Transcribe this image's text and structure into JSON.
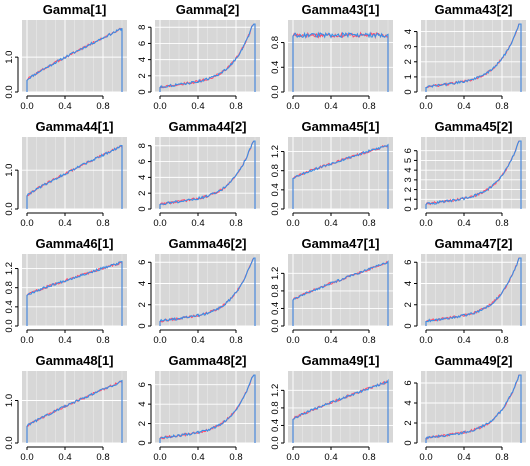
{
  "figure": {
    "background": "#ffffff",
    "panel_background": "#d7d7d7"
  },
  "colors": {
    "chain1": "#ff4d6d",
    "chain2": "#3a8ee6"
  },
  "chart_data": [
    {
      "type": "line",
      "title": "Gamma[1]",
      "x_ticks": [
        "0.0",
        "0.4",
        "0.8"
      ],
      "y_ticks": [
        "0.0",
        "1.0"
      ],
      "ylim": [
        0,
        1.95
      ],
      "shape": "rising",
      "end": 1.82,
      "start": 0.35,
      "series": [
        {
          "values": [
            [
              0,
              0
            ],
            [
              0.02,
              0.3
            ],
            [
              0.1,
              0.45
            ],
            [
              0.3,
              0.8
            ],
            [
              0.5,
              1.1
            ],
            [
              0.7,
              1.45
            ],
            [
              0.9,
              1.75
            ],
            [
              0.97,
              1.82
            ],
            [
              1.0,
              0
            ]
          ]
        }
      ]
    },
    {
      "type": "line",
      "title": "Gamma[2]",
      "x_ticks": [
        "0.0",
        "0.4",
        "0.8"
      ],
      "y_ticks": [
        "0",
        "2",
        "4",
        "6",
        "8"
      ],
      "ylim": [
        0,
        8.4
      ],
      "shape": "convex",
      "series": [
        {
          "values": [
            [
              0,
              0
            ],
            [
              0.2,
              0.3
            ],
            [
              0.4,
              0.8
            ],
            [
              0.6,
              1.5
            ],
            [
              0.8,
              3.0
            ],
            [
              0.9,
              4.6
            ],
            [
              0.96,
              6.5
            ],
            [
              0.985,
              7.8
            ],
            [
              1.0,
              0
            ]
          ]
        }
      ]
    },
    {
      "type": "line",
      "title": "Gamma43[1]",
      "x_ticks": [
        "0.0",
        "0.4",
        "0.8"
      ],
      "y_ticks": [
        "0.0",
        "0.4",
        "0.8"
      ],
      "ylim": [
        0,
        1.1
      ],
      "shape": "flat",
      "series": [
        {
          "values": [
            [
              0,
              0
            ],
            [
              0.02,
              0.95
            ],
            [
              0.5,
              1.0
            ],
            [
              0.98,
              0.97
            ],
            [
              1.0,
              0
            ]
          ]
        }
      ]
    },
    {
      "type": "line",
      "title": "Gamma43[2]",
      "x_ticks": [
        "0.0",
        "0.4",
        "0.8"
      ],
      "y_ticks": [
        "0",
        "1",
        "2",
        "3",
        "4"
      ],
      "ylim": [
        0,
        4.5
      ],
      "shape": "convex",
      "series": [
        {
          "values": [
            [
              0,
              0
            ],
            [
              0.2,
              0.4
            ],
            [
              0.5,
              1.0
            ],
            [
              0.7,
              1.6
            ],
            [
              0.9,
              2.9
            ],
            [
              0.98,
              4.2
            ],
            [
              1.0,
              0
            ]
          ]
        }
      ]
    },
    {
      "type": "line",
      "title": "Gamma44[1]",
      "x_ticks": [
        "0.0",
        "0.4",
        "0.8"
      ],
      "y_ticks": [
        "0.0",
        "1.0"
      ],
      "ylim": [
        0,
        1.75
      ],
      "shape": "rising",
      "end": 1.62,
      "start": 0.35,
      "series": [
        {
          "values": [
            [
              0,
              0
            ],
            [
              0.02,
              0.3
            ],
            [
              0.2,
              0.55
            ],
            [
              0.5,
              0.95
            ],
            [
              0.8,
              1.35
            ],
            [
              0.95,
              1.62
            ],
            [
              1.0,
              0
            ]
          ]
        }
      ]
    },
    {
      "type": "line",
      "title": "Gamma44[2]",
      "x_ticks": [
        "0.0",
        "0.4",
        "0.8"
      ],
      "y_ticks": [
        "0",
        "2",
        "4",
        "6",
        "8"
      ],
      "ylim": [
        0,
        8.6
      ],
      "shape": "convex",
      "series": [
        {
          "values": [
            [
              0,
              0
            ],
            [
              0.3,
              0.5
            ],
            [
              0.6,
              1.5
            ],
            [
              0.8,
              3.0
            ],
            [
              0.95,
              6.0
            ],
            [
              0.985,
              8.2
            ],
            [
              1.0,
              0
            ]
          ]
        }
      ]
    },
    {
      "type": "line",
      "title": "Gamma45[1]",
      "x_ticks": [
        "0.0",
        "0.4",
        "0.8"
      ],
      "y_ticks": [
        "0.0",
        "0.4",
        "0.8",
        "1.2"
      ],
      "ylim": [
        0,
        1.42
      ],
      "shape": "rising",
      "end": 1.33,
      "start": 0.65,
      "series": [
        {
          "values": [
            [
              0,
              0
            ],
            [
              0.03,
              0.6
            ],
            [
              0.2,
              0.78
            ],
            [
              0.5,
              1.0
            ],
            [
              0.8,
              1.22
            ],
            [
              0.95,
              1.33
            ],
            [
              1.0,
              0
            ]
          ]
        }
      ]
    },
    {
      "type": "line",
      "title": "Gamma45[2]",
      "x_ticks": [
        "0.0",
        "0.4",
        "0.8"
      ],
      "y_ticks": [
        "0",
        "1",
        "2",
        "3",
        "4",
        "5",
        "6"
      ],
      "ylim": [
        0,
        7.0
      ],
      "shape": "convex",
      "series": [
        {
          "values": [
            [
              0,
              0
            ],
            [
              0.3,
              0.5
            ],
            [
              0.6,
              1.3
            ],
            [
              0.8,
              2.4
            ],
            [
              0.95,
              4.8
            ],
            [
              0.99,
              6.6
            ],
            [
              1.0,
              0
            ]
          ]
        }
      ]
    },
    {
      "type": "line",
      "title": "Gamma46[1]",
      "x_ticks": [
        "0.0",
        "0.4",
        "0.8"
      ],
      "y_ticks": [
        "0.0",
        "0.4",
        "0.8",
        "1.2"
      ],
      "ylim": [
        0,
        1.42
      ],
      "shape": "rising",
      "end": 1.33,
      "start": 0.65,
      "series": [
        {
          "values": [
            [
              0,
              0
            ],
            [
              0.03,
              0.65
            ],
            [
              0.2,
              0.85
            ],
            [
              0.5,
              1.05
            ],
            [
              0.8,
              1.25
            ],
            [
              0.95,
              1.33
            ],
            [
              1.0,
              0
            ]
          ]
        }
      ]
    },
    {
      "type": "line",
      "title": "Gamma46[2]",
      "x_ticks": [
        "0.0",
        "0.4",
        "0.8"
      ],
      "y_ticks": [
        "0",
        "2",
        "4",
        "6"
      ],
      "ylim": [
        0,
        6.4
      ],
      "shape": "convex",
      "series": [
        {
          "values": [
            [
              0,
              0
            ],
            [
              0.3,
              0.5
            ],
            [
              0.6,
              1.3
            ],
            [
              0.8,
              2.5
            ],
            [
              0.95,
              4.8
            ],
            [
              0.99,
              6.1
            ],
            [
              1.0,
              0
            ]
          ]
        }
      ]
    },
    {
      "type": "line",
      "title": "Gamma47[1]",
      "x_ticks": [
        "0.0",
        "0.4",
        "0.8"
      ],
      "y_ticks": [
        "0.0",
        "0.4",
        "0.8",
        "1.2"
      ],
      "ylim": [
        0,
        1.55
      ],
      "shape": "rising",
      "end": 1.45,
      "start": 0.6,
      "series": [
        {
          "values": [
            [
              0,
              0
            ],
            [
              0.03,
              0.6
            ],
            [
              0.2,
              0.85
            ],
            [
              0.5,
              1.05
            ],
            [
              0.8,
              1.3
            ],
            [
              0.95,
              1.45
            ],
            [
              1.0,
              0
            ]
          ]
        }
      ]
    },
    {
      "type": "line",
      "title": "Gamma47[2]",
      "x_ticks": [
        "0.0",
        "0.4",
        "0.8"
      ],
      "y_ticks": [
        "0",
        "2",
        "4",
        "6"
      ],
      "ylim": [
        0,
        6.4
      ],
      "shape": "convex",
      "series": [
        {
          "values": [
            [
              0,
              0
            ],
            [
              0.3,
              0.4
            ],
            [
              0.6,
              1.3
            ],
            [
              0.8,
              2.5
            ],
            [
              0.95,
              4.8
            ],
            [
              0.99,
              6.1
            ],
            [
              1.0,
              0
            ]
          ]
        }
      ]
    },
    {
      "type": "line",
      "title": "Gamma48[1]",
      "x_ticks": [
        "0.0",
        "0.4",
        "0.8"
      ],
      "y_ticks": [
        "0.0",
        "1.0"
      ],
      "ylim": [
        0,
        1.6
      ],
      "shape": "rising",
      "end": 1.45,
      "start": 0.4,
      "series": [
        {
          "values": [
            [
              0,
              0
            ],
            [
              0.02,
              0.35
            ],
            [
              0.2,
              0.65
            ],
            [
              0.5,
              1.0
            ],
            [
              0.8,
              1.3
            ],
            [
              0.95,
              1.45
            ],
            [
              1.0,
              0
            ]
          ]
        }
      ]
    },
    {
      "type": "line",
      "title": "Gamma48[2]",
      "x_ticks": [
        "0.0",
        "0.4",
        "0.8"
      ],
      "y_ticks": [
        "0",
        "2",
        "4",
        "6"
      ],
      "ylim": [
        0,
        7.0
      ],
      "shape": "convex",
      "series": [
        {
          "values": [
            [
              0,
              0
            ],
            [
              0.3,
              0.5
            ],
            [
              0.6,
              1.3
            ],
            [
              0.8,
              2.5
            ],
            [
              0.95,
              4.9
            ],
            [
              0.99,
              6.4
            ],
            [
              1.0,
              0
            ]
          ]
        }
      ]
    },
    {
      "type": "line",
      "title": "Gamma49[1]",
      "x_ticks": [
        "0.0",
        "0.4",
        "0.8"
      ],
      "y_ticks": [
        "0.0",
        "0.4",
        "0.8",
        "1.2"
      ],
      "ylim": [
        0,
        1.55
      ],
      "shape": "rising",
      "end": 1.4,
      "start": 0.55,
      "series": [
        {
          "values": [
            [
              0,
              0
            ],
            [
              0.03,
              0.55
            ],
            [
              0.2,
              0.8
            ],
            [
              0.5,
              1.0
            ],
            [
              0.8,
              1.25
            ],
            [
              0.95,
              1.4
            ],
            [
              1.0,
              0
            ]
          ]
        }
      ]
    },
    {
      "type": "line",
      "title": "Gamma49[2]",
      "x_ticks": [
        "0.0",
        "0.4",
        "0.8"
      ],
      "y_ticks": [
        "0",
        "2",
        "4",
        "6"
      ],
      "ylim": [
        0,
        6.8
      ],
      "shape": "convex",
      "series": [
        {
          "values": [
            [
              0,
              0
            ],
            [
              0.3,
              0.4
            ],
            [
              0.6,
              1.2
            ],
            [
              0.8,
              2.4
            ],
            [
              0.95,
              4.7
            ],
            [
              0.99,
              6.3
            ],
            [
              1.0,
              0
            ]
          ]
        }
      ]
    }
  ]
}
